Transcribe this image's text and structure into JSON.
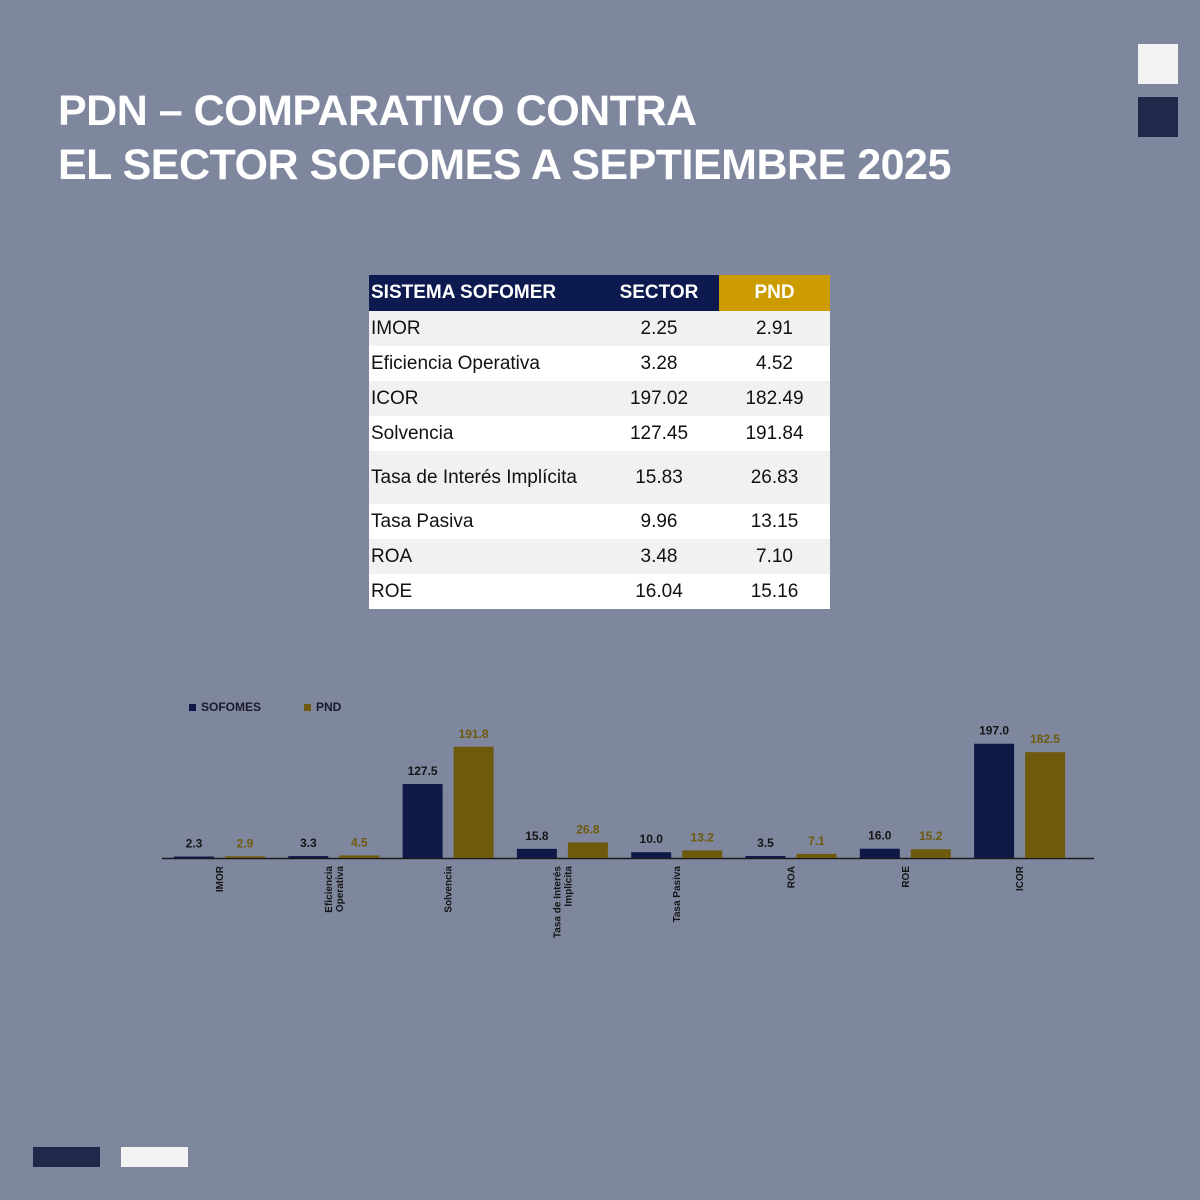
{
  "title": {
    "line1": "PDN – COMPARATIVO CONTRA",
    "line2": "EL SECTOR SOFOMES A SEPTIEMBRE 2025"
  },
  "table": {
    "headers": [
      "SISTEMA SOFOMER",
      "SECTOR",
      "PND"
    ],
    "rows": [
      {
        "name": "IMOR",
        "sector": "2.25",
        "pnd": "2.91"
      },
      {
        "name": "Eficiencia Operativa",
        "sector": "3.28",
        "pnd": "4.52"
      },
      {
        "name": "ICOR",
        "sector": "197.02",
        "pnd": "182.49"
      },
      {
        "name": "Solvencia",
        "sector": "127.45",
        "pnd": "191.84"
      },
      {
        "name": "Tasa de Interés Implícita",
        "sector": "15.83",
        "pnd": "26.83"
      },
      {
        "name": "Tasa Pasiva",
        "sector": "9.96",
        "pnd": "13.15"
      },
      {
        "name": "ROA",
        "sector": "3.48",
        "pnd": "7.10"
      },
      {
        "name": "ROE",
        "sector": "16.04",
        "pnd": "15.16"
      }
    ]
  },
  "colors": {
    "background": "#7f879f",
    "navy": "#0d1a4f",
    "gold": "#cc9b00",
    "series_sofomes": "#0e1a45",
    "series_pnd": "#6e5a0c"
  },
  "chart_data": {
    "type": "bar",
    "legend_position": "top-left",
    "categories": [
      [
        "IMOR"
      ],
      [
        "Eficiencia",
        "Operativa"
      ],
      [
        "Solvencia"
      ],
      [
        "Tasa de Interés",
        "Implícita"
      ],
      [
        "Tasa Pasiva"
      ],
      [
        "ROA"
      ],
      [
        "ROE"
      ],
      [
        "ICOR"
      ]
    ],
    "series": [
      {
        "name": "SOFOMES",
        "values": [
          2.3,
          3.3,
          127.5,
          15.8,
          10.0,
          3.5,
          16.0,
          197.0
        ],
        "labels": [
          "2.3",
          "3.3",
          "127.5",
          "15.8",
          "10.0",
          "3.5",
          "16.0",
          "197.0"
        ]
      },
      {
        "name": "PND",
        "values": [
          2.9,
          4.5,
          191.8,
          26.8,
          13.2,
          7.1,
          15.2,
          182.5
        ],
        "labels": [
          "2.9",
          "4.5",
          "191.8",
          "26.8",
          "13.2",
          "7.1",
          "15.2",
          "182.5"
        ]
      }
    ],
    "ylim": [
      0,
      200
    ]
  }
}
